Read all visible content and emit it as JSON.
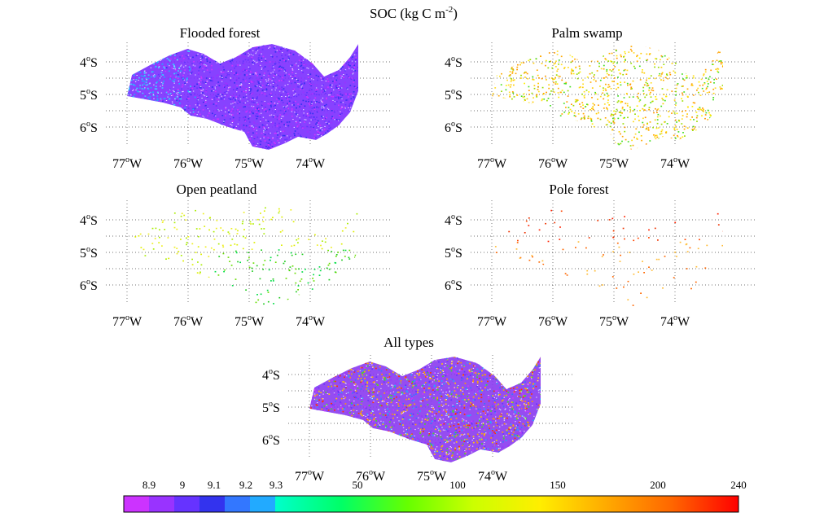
{
  "figure": {
    "title_main": "SOC (kg C m",
    "title_sup": "-2",
    "title_end": ")"
  },
  "panels": [
    {
      "title": "Flooded forest",
      "lat_ticks": [
        {
          "deg": "4",
          "hemi": "S"
        },
        {
          "deg": "5",
          "hemi": "S"
        },
        {
          "deg": "6",
          "hemi": "S"
        }
      ],
      "lon_ticks": [
        {
          "deg": "77",
          "hemi": "W"
        },
        {
          "deg": "76",
          "hemi": "W"
        },
        {
          "deg": "75",
          "hemi": "W"
        },
        {
          "deg": "74",
          "hemi": "W"
        }
      ],
      "palette": [
        "#cc33ff",
        "#9933ff",
        "#6633ff",
        "#3333ee",
        "#3377ff",
        "#22aaff",
        "#44ccff"
      ],
      "coverage": "dense"
    },
    {
      "title": "Palm swamp",
      "lat_ticks": [
        {
          "deg": "4",
          "hemi": "S"
        },
        {
          "deg": "5",
          "hemi": "S"
        },
        {
          "deg": "6",
          "hemi": "S"
        }
      ],
      "lon_ticks": [
        {
          "deg": "77",
          "hemi": "W"
        },
        {
          "deg": "76",
          "hemi": "W"
        },
        {
          "deg": "75",
          "hemi": "W"
        },
        {
          "deg": "74",
          "hemi": "W"
        }
      ],
      "palette": [
        "#ff9900",
        "#ffaa00",
        "#ffcc00",
        "#ffdd22",
        "#ffee00",
        "#99dd00",
        "#44dd22"
      ],
      "coverage": "medium"
    },
    {
      "title": "Open peatland",
      "lat_ticks": [
        {
          "deg": "4",
          "hemi": "S"
        },
        {
          "deg": "5",
          "hemi": "S"
        },
        {
          "deg": "6",
          "hemi": "S"
        }
      ],
      "lon_ticks": [
        {
          "deg": "77",
          "hemi": "W"
        },
        {
          "deg": "76",
          "hemi": "W"
        },
        {
          "deg": "75",
          "hemi": "W"
        },
        {
          "deg": "74",
          "hemi": "W"
        }
      ],
      "palette": [
        "#ddee00",
        "#eeee22",
        "#aaee00",
        "#66dd00",
        "#22cc22",
        "#00dd44"
      ],
      "coverage": "sparse"
    },
    {
      "title": "Pole forest",
      "lat_ticks": [
        {
          "deg": "4",
          "hemi": "S"
        },
        {
          "deg": "5",
          "hemi": "S"
        },
        {
          "deg": "6",
          "hemi": "S"
        }
      ],
      "lon_ticks": [
        {
          "deg": "77",
          "hemi": "W"
        },
        {
          "deg": "76",
          "hemi": "W"
        },
        {
          "deg": "75",
          "hemi": "W"
        },
        {
          "deg": "74",
          "hemi": "W"
        }
      ],
      "palette": [
        "#ff2200",
        "#ff4400",
        "#ee3300",
        "#ff6600",
        "#ffbb33"
      ],
      "coverage": "very-sparse"
    },
    {
      "title": "All types",
      "lat_ticks": [
        {
          "deg": "4",
          "hemi": "S"
        },
        {
          "deg": "5",
          "hemi": "S"
        },
        {
          "deg": "6",
          "hemi": "S"
        }
      ],
      "lon_ticks": [
        {
          "deg": "77",
          "hemi": "W"
        },
        {
          "deg": "76",
          "hemi": "W"
        },
        {
          "deg": "75",
          "hemi": "W"
        },
        {
          "deg": "74",
          "hemi": "W"
        }
      ],
      "palette": [
        "#cc33ff",
        "#9933ff",
        "#6633ff",
        "#3377ff",
        "#22aaff",
        "#ff9900",
        "#ffaa00",
        "#ff3300",
        "#ffcc00",
        "#44dd22"
      ],
      "coverage": "dense"
    }
  ],
  "colorbar": {
    "tick_labels": [
      "8.9",
      "9",
      "9.1",
      "9.2",
      "9.3",
      "50",
      "100",
      "150",
      "200",
      "240"
    ],
    "discrete_colors": [
      "#cc33ff",
      "#9933ff",
      "#6633ff",
      "#3333ee",
      "#3377ff",
      "#22aaff"
    ],
    "continuous_stops": [
      "#00ffcc",
      "#00ff66",
      "#66ff00",
      "#ccff00",
      "#ffee00",
      "#ffaa00",
      "#ff6600",
      "#ff0000"
    ]
  }
}
